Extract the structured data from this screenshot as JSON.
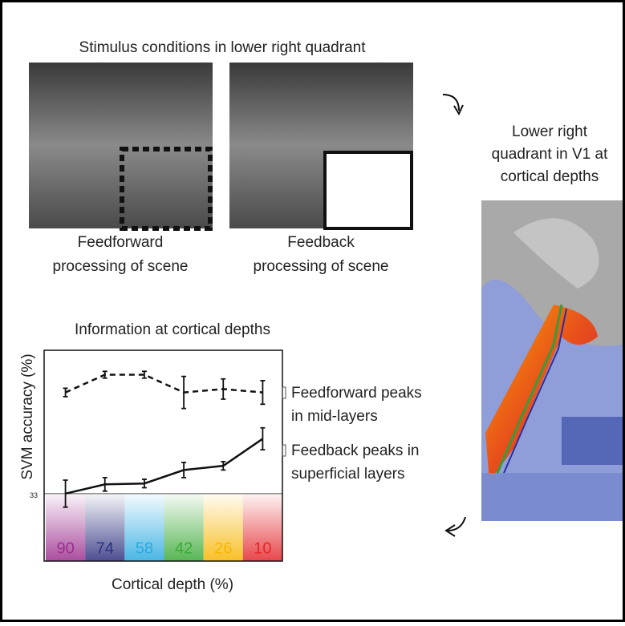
{
  "stimulus": {
    "title": "Stimulus conditions in lower right quadrant",
    "captions": [
      [
        "Feedforward",
        "processing of scene"
      ],
      [
        "Feedback",
        "processing of scene"
      ]
    ]
  },
  "cortex": {
    "caption": [
      "Lower right",
      "quadrant in V1 at",
      "cortical depths"
    ]
  },
  "chart_data": {
    "type": "line",
    "title": "Information at cortical depths",
    "x_label": "Cortical depth (%)",
    "y_label": "SVM accuracy (%)",
    "categories": [
      "90",
      "74",
      "58",
      "42",
      "26",
      "10"
    ],
    "band_colors": [
      "#9b2d8e",
      "#2c2f7e",
      "#29a9e0",
      "#3aa935",
      "#f7b500",
      "#e3262b"
    ],
    "ylim": [
      25,
      50
    ],
    "yticks": [
      33
    ],
    "series": [
      {
        "color": "#111111",
        "dash": true,
        "values": [
          45.0,
          47.1,
          47.1,
          45.0,
          45.4,
          45.0
        ],
        "errors": [
          0.5,
          0.4,
          0.4,
          1.9,
          1.2,
          1.4
        ]
      },
      {
        "color": "#111111",
        "dash": false,
        "values": [
          33.0,
          34.1,
          34.2,
          35.8,
          36.3,
          39.5
        ],
        "errors": [
          1.6,
          0.8,
          0.5,
          0.9,
          0.5,
          1.3
        ]
      }
    ],
    "annotations": [
      [
        "Feedforward peaks",
        "in mid-layers"
      ],
      [
        "Feedback peaks in",
        "superficial layers"
      ]
    ]
  }
}
